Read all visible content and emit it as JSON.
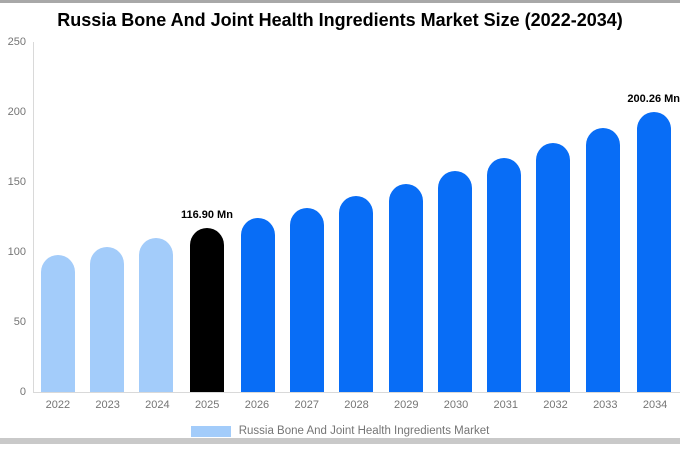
{
  "title": "Russia Bone And Joint Health Ingredients Market Size (2022-2034)",
  "legend": {
    "label": "Russia Bone And Joint Health Ingredients Market",
    "swatch_color": "#a3ccfa"
  },
  "colors": {
    "historical": "#a3ccfa",
    "base_year": "#000000",
    "forecast": "#086df6",
    "axis_line": "#d9d9d9",
    "tick_text": "#757575"
  },
  "chart_data": {
    "type": "bar",
    "title": "Russia Bone And Joint Health Ingredients Market Size (2022-2034)",
    "unit": "Mn",
    "categories": [
      "2022",
      "2023",
      "2024",
      "2025",
      "2026",
      "2027",
      "2028",
      "2029",
      "2030",
      "2031",
      "2032",
      "2033",
      "2034"
    ],
    "values": [
      97.71,
      103.73,
      110.12,
      116.9,
      124.1,
      131.75,
      139.86,
      148.48,
      157.63,
      167.34,
      177.65,
      188.59,
      200.26
    ],
    "bar_roles": [
      "historical",
      "historical",
      "historical",
      "base_year",
      "forecast",
      "forecast",
      "forecast",
      "forecast",
      "forecast",
      "forecast",
      "forecast",
      "forecast",
      "forecast"
    ],
    "point_labels": {
      "2025": "116.90 Mn",
      "2034": "200.26 Mn"
    },
    "y_ticks": [
      0,
      50,
      100,
      150,
      200,
      250
    ],
    "ylim": [
      0,
      250
    ],
    "xlabel": "",
    "ylabel": "",
    "grid": false,
    "legend_position": "bottom"
  }
}
